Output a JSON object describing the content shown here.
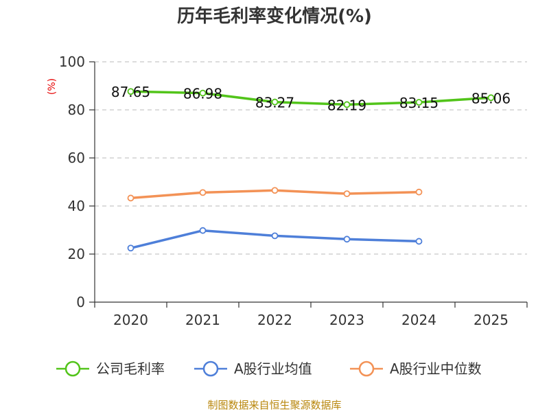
{
  "chart_data": {
    "type": "line",
    "title": "历年毛利率变化情况(%)",
    "unit_label": "(%)",
    "categories": [
      "2020",
      "2021",
      "2022",
      "2023",
      "2024",
      "2025"
    ],
    "ylim": [
      0,
      100
    ],
    "yticks": [
      0,
      20,
      40,
      60,
      80,
      100
    ],
    "grid": true,
    "legend_position": "bottom",
    "series": [
      {
        "name": "公司毛利率",
        "color": "#52c41a",
        "values": [
          87.65,
          86.98,
          83.27,
          82.19,
          83.15,
          85.06
        ],
        "labels": [
          "87.65",
          "86.98",
          "83.27",
          "82.19",
          "83.15",
          "85.06"
        ]
      },
      {
        "name": "A股行业均值",
        "color": "#4e7fd9",
        "values": [
          22.5,
          29.8,
          27.6,
          26.2,
          25.3,
          null
        ]
      },
      {
        "name": "A股行业中位数",
        "color": "#f39256",
        "values": [
          43.3,
          45.6,
          46.5,
          45.1,
          45.8,
          null
        ]
      }
    ],
    "source": "制图数据来自恒生聚源数据库"
  }
}
